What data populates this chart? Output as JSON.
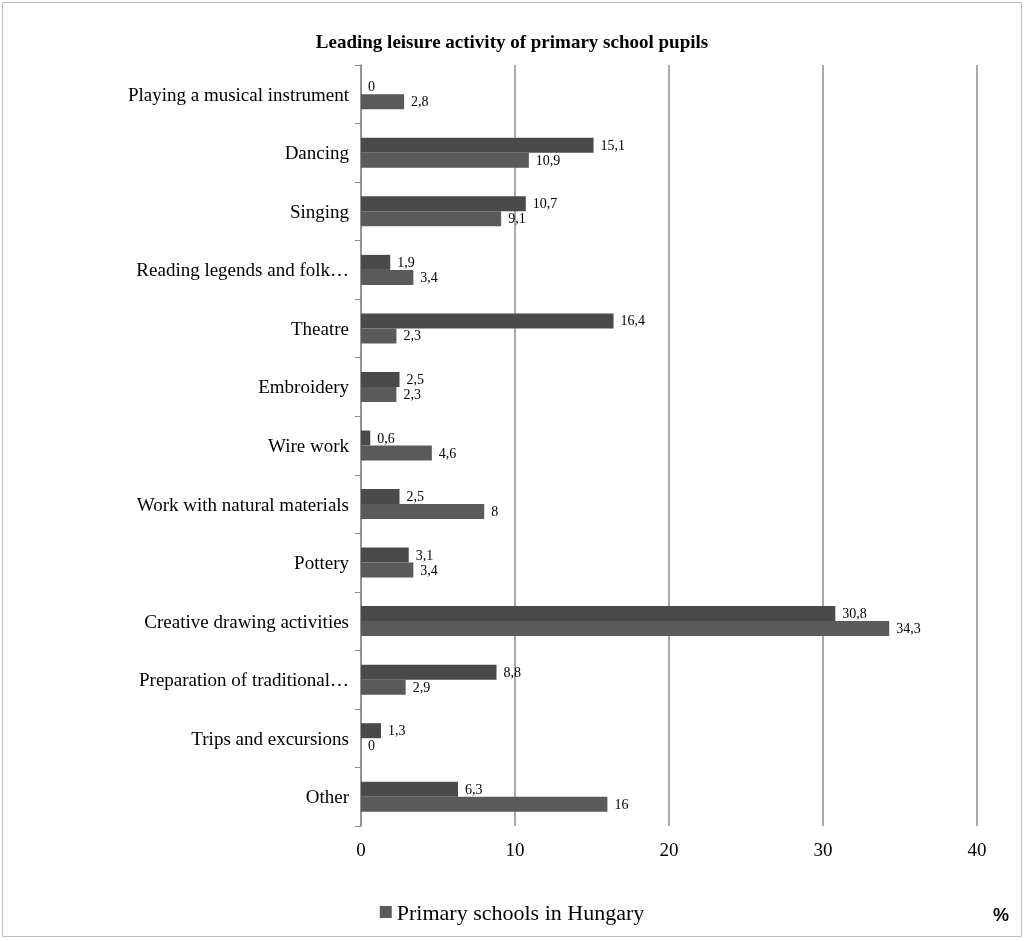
{
  "chart_data": {
    "type": "bar",
    "orientation": "horizontal",
    "title": "Leading leisure activity of primary school pupils",
    "xlabel": "%",
    "categories": [
      "Playing a musical instrument",
      "Dancing",
      "Singing",
      "Reading legends and folk…",
      "Theatre",
      "Embroidery",
      "Wire work",
      "Work with natural materials",
      "Pottery",
      "Creative drawing activities",
      "Preparation of traditional…",
      "Trips and excursions",
      "Other"
    ],
    "series": [
      {
        "color": "#4a4a4a",
        "values": [
          0,
          15.1,
          10.7,
          1.9,
          16.4,
          2.5,
          0.6,
          2.5,
          3.1,
          30.8,
          8.8,
          1.3,
          6.3
        ],
        "value_labels": [
          "0",
          "15,1",
          "10,7",
          "1,9",
          "16,4",
          "2,5",
          "0,6",
          "2,5",
          "3,1",
          "30,8",
          "8,8",
          "1,3",
          "6,3"
        ]
      },
      {
        "name": "Primary schools in Hungary",
        "color": "#5a5a5a",
        "values": [
          2.8,
          10.9,
          9.1,
          3.4,
          2.3,
          2.3,
          4.6,
          8,
          3.4,
          34.3,
          2.9,
          0,
          16
        ],
        "value_labels": [
          "2,8",
          "10,9",
          "9,1",
          "3,4",
          "2,3",
          "2,3",
          "4,6",
          "8",
          "3,4",
          "34,3",
          "2,9",
          "0",
          "16"
        ]
      }
    ],
    "xlim": [
      0,
      40
    ],
    "xticks": [
      0,
      10,
      20,
      30,
      40
    ],
    "grid": "x",
    "legend": "bottom"
  }
}
